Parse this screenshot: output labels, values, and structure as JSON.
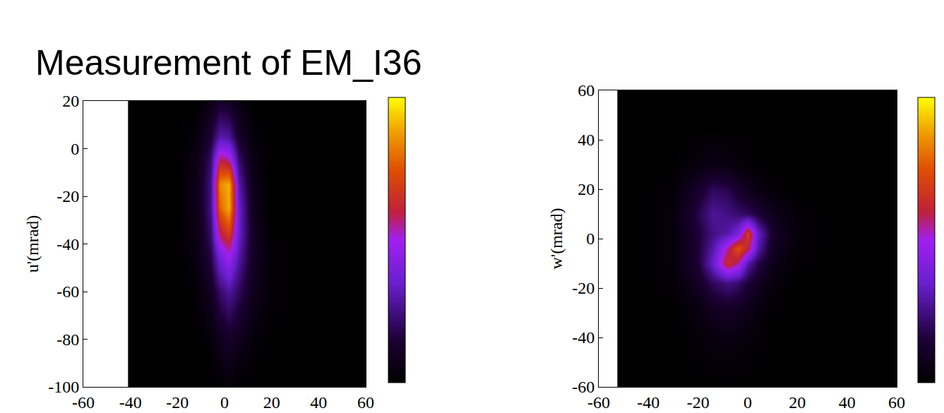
{
  "title": "Measurement of EM_I36",
  "chart_data": [
    {
      "type": "heatmap",
      "y_label": "u'(mrad)",
      "xlim": [
        -60,
        60
      ],
      "ylim": [
        -100,
        20
      ],
      "xticks": [
        -60,
        -40,
        -20,
        0,
        20,
        40,
        60
      ],
      "yticks": [
        -100,
        -80,
        -60,
        -40,
        -20,
        0,
        20
      ],
      "zlim": [
        0,
        1
      ],
      "x": [
        -34,
        -20,
        -12,
        -6,
        -2,
        2,
        6,
        12,
        20,
        34,
        60
      ],
      "y": [
        -100,
        -80,
        -60,
        -45,
        -35,
        -25,
        -15,
        -5,
        5,
        20
      ],
      "z": [
        [
          0,
          0,
          0,
          0,
          0,
          0.03,
          0,
          0,
          0,
          0,
          0
        ],
        [
          0,
          0,
          0,
          0.03,
          0.08,
          0.12,
          0.08,
          0.03,
          0,
          0,
          0
        ],
        [
          0,
          0,
          0.02,
          0.1,
          0.22,
          0.28,
          0.2,
          0.08,
          0.02,
          0,
          0
        ],
        [
          0,
          0,
          0.05,
          0.18,
          0.4,
          0.5,
          0.3,
          0.1,
          0.02,
          0,
          0
        ],
        [
          0,
          0,
          0.06,
          0.22,
          0.6,
          0.7,
          0.35,
          0.1,
          0,
          0,
          0
        ],
        [
          0,
          0,
          0.07,
          0.25,
          0.78,
          0.9,
          0.35,
          0.08,
          0,
          0,
          0
        ],
        [
          0,
          0,
          0.07,
          0.25,
          0.85,
          0.9,
          0.3,
          0.07,
          0,
          0,
          0
        ],
        [
          0,
          0,
          0.06,
          0.22,
          0.6,
          0.55,
          0.22,
          0.05,
          0,
          0,
          0
        ],
        [
          0,
          0,
          0.04,
          0.15,
          0.3,
          0.28,
          0.12,
          0.03,
          0,
          0,
          0
        ],
        [
          0,
          0,
          0,
          0.06,
          0.12,
          0.1,
          0.05,
          0,
          0,
          0,
          0
        ]
      ]
    },
    {
      "type": "heatmap",
      "y_label": "w'(mrad)",
      "xlim": [
        -60,
        60
      ],
      "ylim": [
        -60,
        60
      ],
      "xticks": [
        -60,
        -40,
        -20,
        0,
        20,
        40,
        60
      ],
      "yticks": [
        -60,
        -40,
        -20,
        0,
        20,
        40,
        60
      ],
      "zlim": [
        0,
        1
      ],
      "x": [
        -45,
        -30,
        -20,
        -14,
        -8,
        -4,
        0,
        4,
        10,
        20,
        35,
        60
      ],
      "y": [
        -60,
        -40,
        -28,
        -18,
        -10,
        -4,
        2,
        10,
        20,
        30,
        45,
        60
      ],
      "z": [
        [
          0,
          0,
          0,
          0,
          0,
          0,
          0,
          0,
          0,
          0,
          0,
          0
        ],
        [
          0,
          0,
          0.02,
          0.04,
          0.05,
          0.04,
          0.03,
          0.02,
          0,
          0,
          0,
          0
        ],
        [
          0,
          0,
          0.05,
          0.1,
          0.12,
          0.1,
          0.07,
          0.04,
          0.01,
          0,
          0,
          0
        ],
        [
          0,
          0.02,
          0.1,
          0.2,
          0.25,
          0.22,
          0.15,
          0.1,
          0.04,
          0,
          0,
          0
        ],
        [
          0,
          0.03,
          0.15,
          0.35,
          0.65,
          0.55,
          0.3,
          0.18,
          0.07,
          0.01,
          0,
          0
        ],
        [
          0,
          0.03,
          0.15,
          0.3,
          0.55,
          0.75,
          0.6,
          0.3,
          0.1,
          0.02,
          0,
          0
        ],
        [
          0,
          0.03,
          0.15,
          0.25,
          0.3,
          0.4,
          0.7,
          0.35,
          0.12,
          0.03,
          0,
          0
        ],
        [
          0,
          0.03,
          0.18,
          0.28,
          0.25,
          0.22,
          0.2,
          0.15,
          0.08,
          0.02,
          0,
          0
        ],
        [
          0,
          0.02,
          0.12,
          0.2,
          0.18,
          0.12,
          0.08,
          0.05,
          0.02,
          0,
          0,
          0
        ],
        [
          0,
          0,
          0.04,
          0.06,
          0.05,
          0.03,
          0.02,
          0.01,
          0,
          0,
          0,
          0
        ],
        [
          0,
          0,
          0,
          0,
          0,
          0,
          0,
          0,
          0,
          0,
          0,
          0
        ],
        [
          0,
          0,
          0,
          0,
          0,
          0,
          0,
          0,
          0,
          0,
          0,
          0
        ]
      ]
    }
  ]
}
